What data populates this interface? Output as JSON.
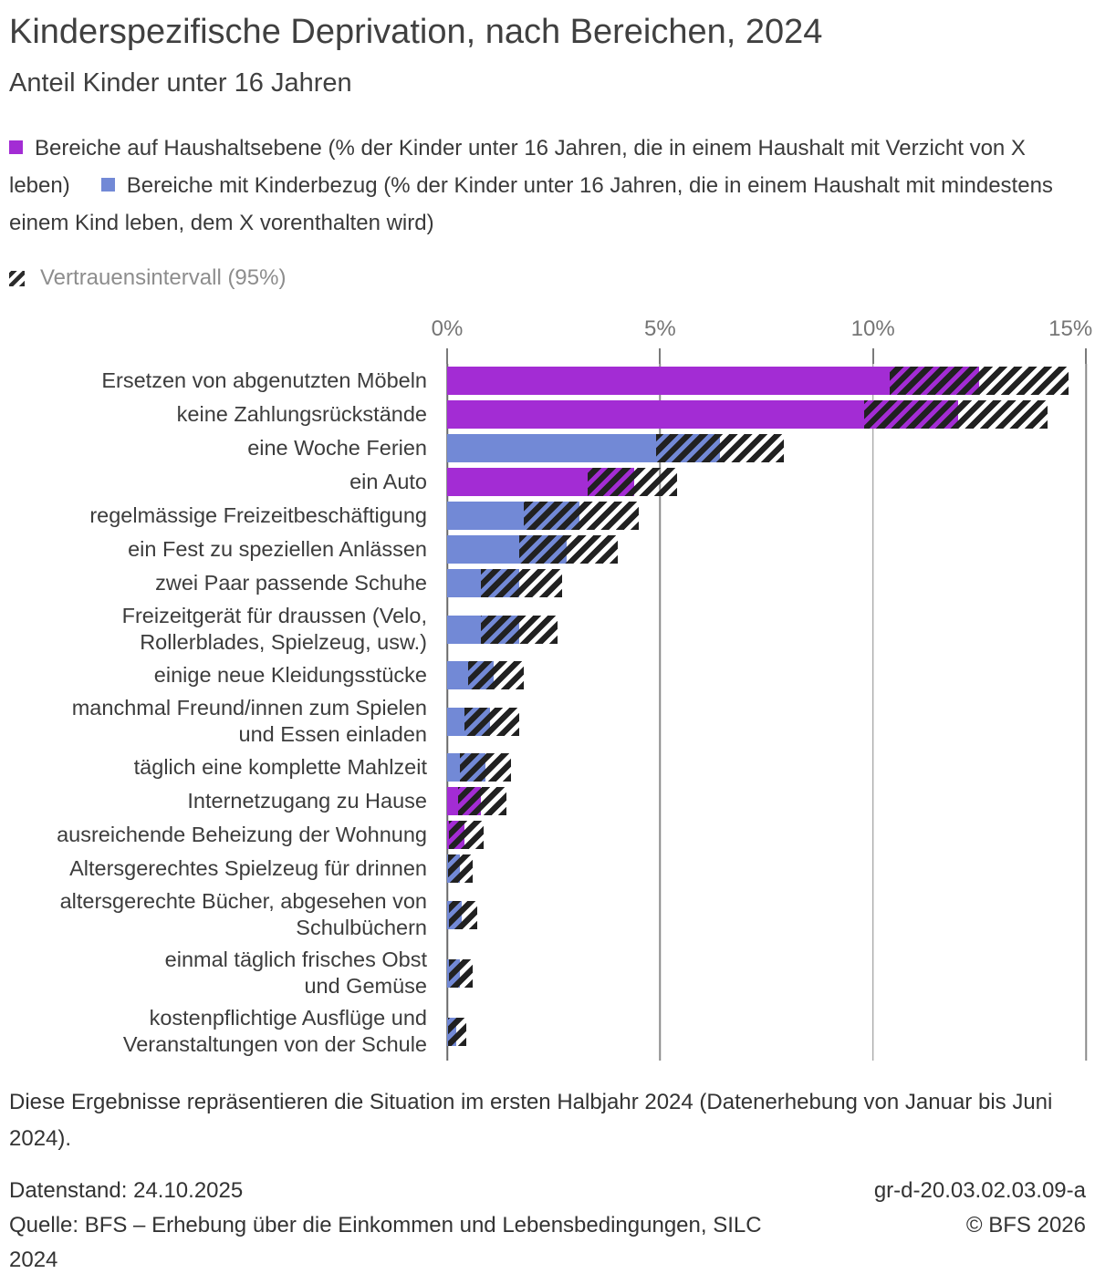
{
  "title": "Kinderspezifische Deprivation, nach Bereichen, 2024",
  "subtitle": "Anteil Kinder unter 16 Jahren",
  "legend": {
    "household_label": "Bereiche auf Haushaltsebene (% der Kinder unter 16 Jahren, die in einem Haushalt mit Verzicht von X leben)",
    "child_label": "Bereiche mit Kinderbezug (% der Kinder unter 16 Jahren, die in einem Haushalt mit mindestens einem Kind leben, dem X vorenthalten wird)",
    "ci_label": "Vertrauensintervall (95%)"
  },
  "colors": {
    "household": "#a32cd4",
    "child": "#7289d6",
    "hatch": "#212121",
    "gridline": "#8c8c8c"
  },
  "chart_data": {
    "type": "bar",
    "orientation": "horizontal",
    "unit": "%",
    "x_max": 15,
    "grid": true,
    "x_ticks": [
      {
        "label": "0%",
        "value": 0
      },
      {
        "label": "5%",
        "value": 5
      },
      {
        "label": "10%",
        "value": 10
      },
      {
        "label": "15%",
        "value": 15
      }
    ],
    "series_legend": {
      "household": "Bereiche auf Haushaltsebene",
      "child": "Bereiche mit Kinderbezug"
    },
    "items": [
      {
        "label": "Ersetzen von abgenutzten Möbeln",
        "lines": [
          "Ersetzen von abgenutzten Möbeln"
        ],
        "series": "household",
        "value": 12.5,
        "ci_low": 10.4,
        "ci_high": 14.6
      },
      {
        "label": "keine Zahlungsrückstände",
        "lines": [
          "keine Zahlungsrückstände"
        ],
        "series": "household",
        "value": 12.0,
        "ci_low": 9.8,
        "ci_high": 14.1
      },
      {
        "label": "eine Woche Ferien",
        "lines": [
          "eine Woche Ferien"
        ],
        "series": "child",
        "value": 6.4,
        "ci_low": 4.9,
        "ci_high": 7.9
      },
      {
        "label": "ein Auto",
        "lines": [
          "ein Auto"
        ],
        "series": "household",
        "value": 4.4,
        "ci_low": 3.3,
        "ci_high": 5.4
      },
      {
        "label": "regelmässige Freizeitbeschäftigung",
        "lines": [
          "regelmässige Freizeitbeschäftigung"
        ],
        "series": "child",
        "value": 3.1,
        "ci_low": 1.8,
        "ci_high": 4.5
      },
      {
        "label": "ein Fest zu speziellen Anlässen",
        "lines": [
          "ein Fest zu speziellen Anlässen"
        ],
        "series": "child",
        "value": 2.8,
        "ci_low": 1.7,
        "ci_high": 4.0
      },
      {
        "label": "zwei Paar passende Schuhe",
        "lines": [
          "zwei Paar passende Schuhe"
        ],
        "series": "child",
        "value": 1.7,
        "ci_low": 0.8,
        "ci_high": 2.7
      },
      {
        "label": "Freizeitgerät für draussen (Velo, Rollerblades, Spielzeug, usw.)",
        "lines": [
          "Freizeitgerät für draussen (Velo,",
          "Rollerblades, Spielzeug, usw.)"
        ],
        "series": "child",
        "value": 1.7,
        "ci_low": 0.8,
        "ci_high": 2.6
      },
      {
        "label": "einige neue Kleidungsstücke",
        "lines": [
          "einige neue Kleidungsstücke"
        ],
        "series": "child",
        "value": 1.1,
        "ci_low": 0.5,
        "ci_high": 1.8
      },
      {
        "label": "manchmal Freund/innen zum Spielen und Essen einladen",
        "lines": [
          "manchmal Freund/innen zum Spielen",
          "und Essen einladen"
        ],
        "series": "child",
        "value": 1.0,
        "ci_low": 0.4,
        "ci_high": 1.7
      },
      {
        "label": "täglich eine komplette Mahlzeit",
        "lines": [
          "täglich eine komplette Mahlzeit"
        ],
        "series": "child",
        "value": 0.9,
        "ci_low": 0.3,
        "ci_high": 1.5
      },
      {
        "label": "Internetzugang zu Hause",
        "lines": [
          "Internetzugang zu Hause"
        ],
        "series": "household",
        "value": 0.8,
        "ci_low": 0.25,
        "ci_high": 1.4
      },
      {
        "label": "ausreichende Beheizung der Wohnung",
        "lines": [
          "ausreichende Beheizung der Wohnung"
        ],
        "series": "household",
        "value": 0.4,
        "ci_low": 0.05,
        "ci_high": 0.85
      },
      {
        "label": "Altersgerechtes Spielzeug für drinnen",
        "lines": [
          "Altersgerechtes Spielzeug für drinnen"
        ],
        "series": "child",
        "value": 0.3,
        "ci_low": 0.02,
        "ci_high": 0.6
      },
      {
        "label": "altersgerechte Bücher, abgesehen von Schulbüchern",
        "lines": [
          "altersgerechte Bücher, abgesehen von",
          "Schulbüchern"
        ],
        "series": "child",
        "value": 0.35,
        "ci_low": 0.04,
        "ci_high": 0.7
      },
      {
        "label": "einmal täglich frisches Obst und Gemüse",
        "lines": [
          "einmal täglich frisches Obst",
          "und Gemüse"
        ],
        "series": "child",
        "value": 0.3,
        "ci_low": 0.04,
        "ci_high": 0.6
      },
      {
        "label": "kostenpflichtige Ausflüge und Veranstaltungen von der Schule",
        "lines": [
          "kostenpflichtige Ausflüge und",
          "Veranstaltungen von der Schule"
        ],
        "series": "child",
        "value": 0.22,
        "ci_low": 0.02,
        "ci_high": 0.45
      }
    ]
  },
  "footnote": "Diese Ergebnisse repräsentieren die Situation im ersten Halbjahr 2024 (Datenerhebung von Januar bis Juni 2024).",
  "footer": {
    "datenstand": "Datenstand: 24.10.2025",
    "quelle": "Quelle: BFS – Erhebung über die Einkommen und Lebensbedingungen, SILC 2024",
    "code": "gr-d-20.03.02.03.09-a",
    "copyright": "© BFS 2026"
  }
}
